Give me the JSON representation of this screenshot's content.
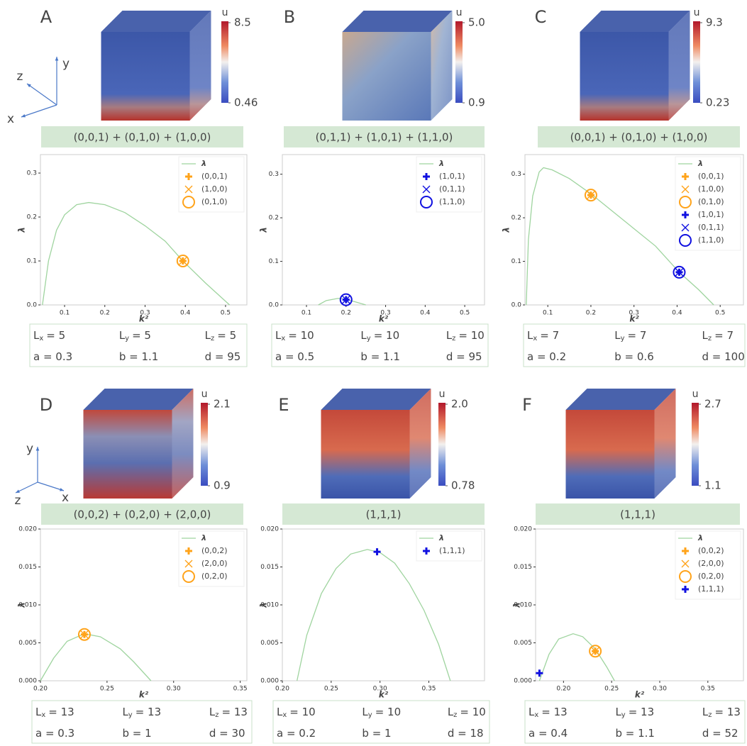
{
  "chart_data": [
    {
      "type": "line",
      "panel": "A",
      "title": "(0,0,1) + (0,1,0) + (1,0,0)",
      "axes": {
        "x": "x",
        "y": "y",
        "z": "z"
      },
      "colorbar": {
        "label": "u",
        "ticks": [
          8.5,
          0.46
        ]
      },
      "xlabel": "k²",
      "ylabel": "λ",
      "xlim": [
        0.04,
        0.553
      ],
      "ylim": [
        0,
        0.342
      ],
      "xticks": [
        0.1,
        0.2,
        0.3,
        0.4,
        0.5
      ],
      "yticks": [
        {
          "value": 0,
          "label": "0.0"
        },
        0.1,
        0.2,
        0.3
      ],
      "series": [
        {
          "name": "λ",
          "color": "#9fd49f",
          "x": [
            0.045,
            0.06,
            0.08,
            0.1,
            0.13,
            0.16,
            0.2,
            0.25,
            0.3,
            0.35,
            0.394,
            0.45,
            0.51
          ],
          "values": [
            0,
            0.1,
            0.17,
            0.205,
            0.228,
            0.233,
            0.228,
            0.21,
            0.18,
            0.145,
            0.1,
            0.05,
            0
          ]
        },
        {
          "name": "(0,0,1)",
          "color": "#ffa31a",
          "marker": "plus",
          "x": [
            0.394
          ],
          "values": [
            0.1
          ]
        },
        {
          "name": "(1,0,0)",
          "color": "#ffa31a",
          "marker": "x",
          "x": [
            0.394
          ],
          "values": [
            0.1
          ]
        },
        {
          "name": "(0,1,0)",
          "color": "#ffa31a",
          "marker": "circle",
          "x": [
            0.394
          ],
          "values": [
            0.1
          ]
        }
      ],
      "params": [
        [
          {
            "main": "L",
            "sub": "x",
            "rest": "= 5"
          },
          {
            "main": "L",
            "sub": "y",
            "rest": "= 5"
          },
          {
            "main": "L",
            "sub": "z",
            "rest": "= 5"
          }
        ],
        [
          {
            "main": "a = 0.3"
          },
          {
            "main": "b = 1.1"
          },
          {
            "main": "d = 95"
          }
        ]
      ]
    },
    {
      "type": "line",
      "panel": "B",
      "title": "(0,1,1) + (1,0,1) + (1,1,0)",
      "colorbar": {
        "label": "u",
        "ticks": [
          {
            "value": 5,
            "label": "5.0"
          },
          0.9
        ]
      },
      "xlabel": "k²",
      "ylabel": "λ",
      "xlim": [
        0.039,
        0.55
      ],
      "ylim": [
        0,
        0.345
      ],
      "xticks": [
        0.1,
        0.2,
        0.3,
        0.4,
        0.5
      ],
      "yticks": [
        {
          "value": 0,
          "label": "0.0"
        },
        0.1,
        0.2,
        0.3
      ],
      "series": [
        {
          "name": "λ",
          "color": "#9fd49f",
          "x": [
            0.13,
            0.15,
            0.18,
            0.2,
            0.22,
            0.25
          ],
          "values": [
            0,
            0.01,
            0.015,
            0.013,
            0.008,
            0
          ]
        },
        {
          "name": "(1,0,1)",
          "color": "#1010e0",
          "marker": "plus",
          "x": [
            0.2
          ],
          "values": [
            0.012
          ]
        },
        {
          "name": "(0,1,1)",
          "color": "#1010e0",
          "marker": "x",
          "x": [
            0.2
          ],
          "values": [
            0.012
          ]
        },
        {
          "name": "(1,1,0)",
          "color": "#1010e0",
          "marker": "circle",
          "x": [
            0.2
          ],
          "values": [
            0.012
          ]
        }
      ],
      "params": [
        [
          {
            "main": "L",
            "sub": "x",
            "rest": "= 10"
          },
          {
            "main": "L",
            "sub": "y",
            "rest": "= 10"
          },
          {
            "main": "L",
            "sub": "z",
            "rest": "= 10"
          }
        ],
        [
          {
            "main": "a = 0.5"
          },
          {
            "main": "b = 1.1"
          },
          {
            "main": "d = 95"
          }
        ]
      ]
    },
    {
      "type": "line",
      "panel": "C",
      "title": "(0,0,1) + (0,1,0) + (1,0,0)",
      "colorbar": {
        "label": "u",
        "ticks": [
          9.3,
          0.23
        ]
      },
      "xlabel": "k²",
      "ylabel": "λ",
      "xlim": [
        0.047,
        0.554
      ],
      "ylim": [
        0,
        0.345
      ],
      "xticks": [
        0.1,
        0.2,
        0.3,
        0.4,
        0.5
      ],
      "yticks": [
        {
          "value": 0,
          "label": "0.0"
        },
        0.1,
        0.2,
        0.3
      ],
      "series": [
        {
          "name": "λ",
          "color": "#9fd49f",
          "x": [
            0.05,
            0.055,
            0.065,
            0.08,
            0.09,
            0.11,
            0.15,
            0.2,
            0.25,
            0.3,
            0.35,
            0.405,
            0.45,
            0.485
          ],
          "values": [
            0,
            0.15,
            0.25,
            0.305,
            0.315,
            0.31,
            0.29,
            0.255,
            0.215,
            0.175,
            0.135,
            0.075,
            0.035,
            0
          ]
        },
        {
          "name": "(0,0,1)",
          "color": "#ffa31a",
          "marker": "plus",
          "x": [
            0.2
          ],
          "values": [
            0.252
          ]
        },
        {
          "name": "(1,0,0)",
          "color": "#ffa31a",
          "marker": "x",
          "x": [
            0.2
          ],
          "values": [
            0.252
          ]
        },
        {
          "name": "(0,1,0)",
          "color": "#ffa31a",
          "marker": "circle",
          "x": [
            0.2
          ],
          "values": [
            0.252
          ]
        },
        {
          "name": "(1,0,1)",
          "color": "#1010e0",
          "marker": "plus",
          "x": [
            0.405
          ],
          "values": [
            0.075
          ]
        },
        {
          "name": "(0,1,1)",
          "color": "#1010e0",
          "marker": "x",
          "x": [
            0.405
          ],
          "values": [
            0.075
          ]
        },
        {
          "name": "(1,1,0)",
          "color": "#1010e0",
          "marker": "circle",
          "x": [
            0.405
          ],
          "values": [
            0.075
          ]
        }
      ],
      "params": [
        [
          {
            "main": "L",
            "sub": "x",
            "rest": "= 7"
          },
          {
            "main": "L",
            "sub": "y",
            "rest": "= 7"
          },
          {
            "main": "L",
            "sub": "z",
            "rest": "= 7"
          }
        ],
        [
          {
            "main": "a = 0.2"
          },
          {
            "main": "b = 0.6"
          },
          {
            "main": "d = 100"
          }
        ]
      ]
    },
    {
      "type": "line",
      "panel": "D",
      "title": "(0,0,2) + (0,2,0) + (2,0,0)",
      "axes": {
        "x": "x",
        "y": "y",
        "z": "z"
      },
      "colorbar": {
        "label": "u",
        "ticks": [
          2.1,
          0.9
        ]
      },
      "xlabel": "k²",
      "ylabel": "λ",
      "xlim": [
        0.2,
        0.355
      ],
      "ylim": [
        0,
        0.02
      ],
      "xticks": [
        {
          "value": 0.2,
          "label": "0.20"
        },
        0.25,
        {
          "value": 0.3,
          "label": "0.30"
        },
        0.35
      ],
      "yticks": [
        {
          "value": 0,
          "label": "0.000"
        },
        0.005,
        {
          "value": 0.01,
          "label": "0.010"
        },
        0.015,
        {
          "value": 0.02,
          "label": "0.020"
        }
      ],
      "series": [
        {
          "name": "λ",
          "color": "#9fd49f",
          "x": [
            0.2,
            0.21,
            0.22,
            0.233,
            0.245,
            0.26,
            0.27,
            0.283
          ],
          "values": [
            0,
            0.003,
            0.0052,
            0.0062,
            0.0058,
            0.0042,
            0.0025,
            0
          ]
        },
        {
          "name": "(0,0,2)",
          "color": "#ffa31a",
          "marker": "plus",
          "x": [
            0.233
          ],
          "values": [
            0.0061
          ]
        },
        {
          "name": "(2,0,0)",
          "color": "#ffa31a",
          "marker": "x",
          "x": [
            0.233
          ],
          "values": [
            0.0061
          ]
        },
        {
          "name": "(0,2,0)",
          "color": "#ffa31a",
          "marker": "circle",
          "x": [
            0.233
          ],
          "values": [
            0.0061
          ]
        }
      ],
      "params": [
        [
          {
            "main": "L",
            "sub": "x",
            "rest": "= 13"
          },
          {
            "main": "L",
            "sub": "y",
            "rest": "= 13"
          },
          {
            "main": "L",
            "sub": "z",
            "rest": "= 13"
          }
        ],
        [
          {
            "main": "a = 0.3"
          },
          {
            "main": "b = 1"
          },
          {
            "main": "d = 30"
          }
        ]
      ]
    },
    {
      "type": "line",
      "panel": "E",
      "title": "(1,1,1)",
      "colorbar": {
        "label": "u",
        "ticks": [
          {
            "value": 2,
            "label": "2.0"
          },
          0.78
        ]
      },
      "xlabel": "k²",
      "ylabel": "λ",
      "xlim": [
        0.2,
        0.407
      ],
      "ylim": [
        0,
        0.02
      ],
      "xticks": [
        {
          "value": 0.2,
          "label": "0.20"
        },
        0.25,
        {
          "value": 0.3,
          "label": "0.30"
        },
        0.35
      ],
      "yticks": [
        {
          "value": 0,
          "label": "0.000"
        },
        0.005,
        {
          "value": 0.01,
          "label": "0.010"
        },
        0.015,
        {
          "value": 0.02,
          "label": "0.020"
        }
      ],
      "series": [
        {
          "name": "λ",
          "color": "#9fd49f",
          "x": [
            0.215,
            0.225,
            0.24,
            0.255,
            0.27,
            0.287,
            0.3,
            0.315,
            0.33,
            0.345,
            0.36,
            0.372
          ],
          "values": [
            0,
            0.006,
            0.0115,
            0.0148,
            0.0167,
            0.0173,
            0.0169,
            0.0155,
            0.0128,
            0.0093,
            0.0048,
            0
          ]
        },
        {
          "name": "(1,1,1)",
          "color": "#1010e0",
          "marker": "plus",
          "x": [
            0.297
          ],
          "values": [
            0.017
          ]
        }
      ],
      "params": [
        [
          {
            "main": "L",
            "sub": "x",
            "rest": "= 10"
          },
          {
            "main": "L",
            "sub": "y",
            "rest": "= 10"
          },
          {
            "main": "L",
            "sub": "z",
            "rest": "= 10"
          }
        ],
        [
          {
            "main": "a = 0.2"
          },
          {
            "main": "b = 1"
          },
          {
            "main": "d = 18"
          }
        ]
      ]
    },
    {
      "type": "line",
      "panel": "F",
      "title": "(1,1,1)",
      "colorbar": {
        "label": "u",
        "ticks": [
          2.7,
          1.1
        ]
      },
      "xlabel": "k²",
      "ylabel": "λ",
      "xlim": [
        0.171,
        0.387
      ],
      "ylim": [
        0,
        0.02
      ],
      "xticks": [
        {
          "value": 0.2,
          "label": "0.20"
        },
        0.25,
        {
          "value": 0.3,
          "label": "0.30"
        },
        0.35
      ],
      "yticks": [
        {
          "value": 0,
          "label": "0.000"
        },
        0.005,
        {
          "value": 0.01,
          "label": "0.010"
        },
        0.015,
        {
          "value": 0.02,
          "label": "0.020"
        }
      ],
      "series": [
        {
          "name": "λ",
          "color": "#9fd49f",
          "x": [
            0.175,
            0.185,
            0.195,
            0.21,
            0.22,
            0.233,
            0.245,
            0.253
          ],
          "values": [
            0,
            0.0035,
            0.0055,
            0.0062,
            0.0058,
            0.0042,
            0.0018,
            0
          ]
        },
        {
          "name": "(0,0,2)",
          "color": "#ffa31a",
          "marker": "plus",
          "x": [
            0.233
          ],
          "values": [
            0.0039
          ]
        },
        {
          "name": "(2,0,0)",
          "color": "#ffa31a",
          "marker": "x",
          "x": [
            0.233
          ],
          "values": [
            0.0039
          ]
        },
        {
          "name": "(0,2,0)",
          "color": "#ffa31a",
          "marker": "circle",
          "x": [
            0.233
          ],
          "values": [
            0.0039
          ]
        },
        {
          "name": "(1,1,1)",
          "color": "#1010e0",
          "marker": "plus",
          "x": [
            0.175
          ],
          "values": [
            0.001
          ]
        }
      ],
      "params": [
        [
          {
            "main": "L",
            "sub": "x",
            "rest": "= 13"
          },
          {
            "main": "L",
            "sub": "y",
            "rest": "= 13"
          },
          {
            "main": "L",
            "sub": "z",
            "rest": "= 13"
          }
        ],
        [
          {
            "main": "a = 0.4"
          },
          {
            "main": "b = 1.1"
          },
          {
            "main": "d = 52"
          }
        ]
      ]
    }
  ]
}
